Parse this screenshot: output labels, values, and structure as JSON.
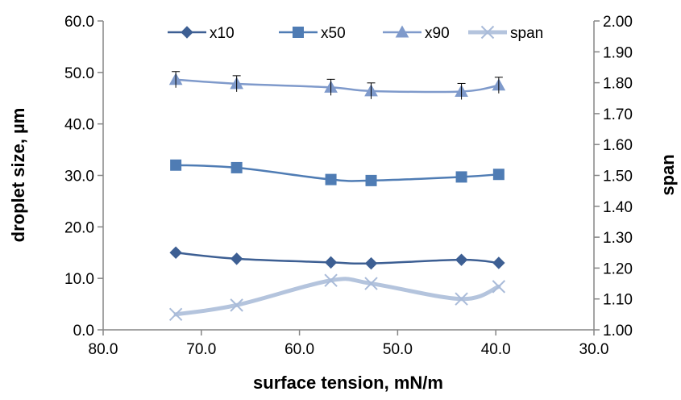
{
  "chart_data": {
    "type": "line",
    "title": "",
    "xlabel": "surface tension, mN/m",
    "ylabel": "droplet size, µm",
    "y2label": "span",
    "xlim": [
      80.0,
      30.0
    ],
    "x_reversed": true,
    "ylim": [
      0.0,
      60.0
    ],
    "y2lim": [
      1.0,
      2.0
    ],
    "x_ticks": [
      "80.0",
      "70.0",
      "60.0",
      "50.0",
      "40.0",
      "30.0"
    ],
    "y_ticks": [
      "0.0",
      "10.0",
      "20.0",
      "30.0",
      "40.0",
      "50.0",
      "60.0"
    ],
    "y2_ticks": [
      "1.00",
      "1.10",
      "1.20",
      "1.30",
      "1.40",
      "1.50",
      "1.60",
      "1.70",
      "1.80",
      "1.90",
      "2.00"
    ],
    "grid": false,
    "legend_position": "top",
    "x": [
      72.6,
      66.4,
      56.8,
      52.7,
      43.5,
      39.7
    ],
    "series": [
      {
        "name": "x10",
        "axis": "left",
        "marker": "diamond",
        "color": "#3D5F93",
        "values": [
          15.0,
          13.8,
          13.1,
          12.9,
          13.6,
          13.0
        ]
      },
      {
        "name": "x50",
        "axis": "left",
        "marker": "square",
        "color": "#4F7CB4",
        "values": [
          32.0,
          31.5,
          29.2,
          29.0,
          29.7,
          30.2
        ]
      },
      {
        "name": "x90",
        "axis": "left",
        "marker": "triangle",
        "color": "#7F9ACB",
        "values": [
          48.6,
          47.8,
          47.1,
          46.4,
          46.3,
          47.5
        ]
      },
      {
        "name": "span",
        "axis": "right",
        "marker": "x",
        "color": "#B4C4DD",
        "values": [
          1.05,
          1.08,
          1.16,
          1.15,
          1.1,
          1.14
        ]
      }
    ]
  }
}
